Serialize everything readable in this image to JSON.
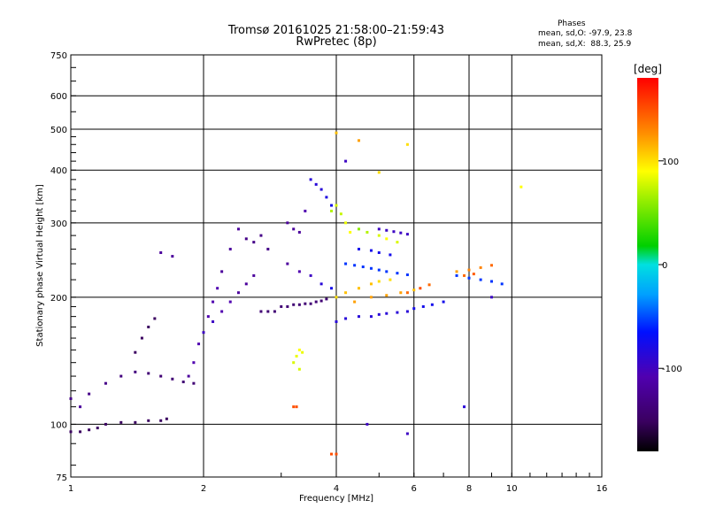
{
  "header": {
    "title_line1": "Tromsø 20161025 21:58:00–21:59:43",
    "title_line2": "RwPretec (8p)"
  },
  "stats": {
    "heading": "Phases",
    "o_mode": "mean, sd,O: -97.9, 23.8",
    "x_mode": "mean, sd,X:  88.3, 25.9"
  },
  "colorbar": {
    "unit_label": "[deg]",
    "range": [
      -180,
      180
    ],
    "ticks": [
      {
        "value": 100,
        "label": "100"
      },
      {
        "value": 0,
        "label": "0"
      },
      {
        "value": -100,
        "label": "-100"
      }
    ]
  },
  "chart_data": {
    "type": "scatter",
    "xlabel": "Frequency [MHz]",
    "ylabel": "Stationary phase Virtual Height [km]",
    "x_scale": "log",
    "y_scale": "log",
    "xlim": [
      1,
      16
    ],
    "ylim": [
      75,
      750
    ],
    "grid": true,
    "x_ticks": [
      1,
      2,
      4,
      6,
      8,
      10,
      16
    ],
    "x_tick_labels": [
      "1",
      "2",
      "4",
      "6",
      "8",
      "10",
      "16"
    ],
    "y_ticks": [
      75,
      100,
      200,
      300,
      400,
      500,
      600,
      750
    ],
    "y_tick_labels": [
      "75",
      "100",
      "200",
      "300",
      "400",
      "500",
      "600",
      "750"
    ],
    "color_encoding": "phase [deg]",
    "series": [
      {
        "mode": "O",
        "points": [
          [
            1.0,
            96,
            -150
          ],
          [
            1.05,
            96,
            -150
          ],
          [
            1.1,
            97,
            -150
          ],
          [
            1.15,
            98,
            -150
          ],
          [
            1.2,
            100,
            -150
          ],
          [
            1.3,
            101,
            -150
          ],
          [
            1.4,
            101,
            -150
          ],
          [
            1.5,
            102,
            -150
          ],
          [
            1.6,
            102,
            -150
          ],
          [
            1.65,
            103,
            -150
          ],
          [
            1.0,
            115,
            -130
          ],
          [
            1.05,
            110,
            -120
          ],
          [
            1.1,
            118,
            -130
          ],
          [
            1.2,
            125,
            -130
          ],
          [
            1.3,
            130,
            -135
          ],
          [
            1.4,
            133,
            -135
          ],
          [
            1.5,
            132,
            -140
          ],
          [
            1.6,
            130,
            -140
          ],
          [
            1.7,
            128,
            -140
          ],
          [
            1.8,
            126,
            -140
          ],
          [
            1.9,
            125,
            -140
          ],
          [
            1.4,
            148,
            -150
          ],
          [
            1.45,
            160,
            -150
          ],
          [
            1.5,
            170,
            -150
          ],
          [
            1.55,
            178,
            -150
          ],
          [
            1.6,
            255,
            -120
          ],
          [
            1.7,
            250,
            -120
          ],
          [
            1.85,
            130,
            -120
          ],
          [
            1.9,
            140,
            -110
          ],
          [
            1.95,
            155,
            -110
          ],
          [
            2.0,
            165,
            -100
          ],
          [
            2.05,
            180,
            -110
          ],
          [
            2.1,
            195,
            -110
          ],
          [
            2.15,
            210,
            -110
          ],
          [
            2.2,
            230,
            -120
          ],
          [
            2.3,
            260,
            -120
          ],
          [
            2.4,
            290,
            -120
          ],
          [
            2.5,
            275,
            -130
          ],
          [
            2.6,
            270,
            -130
          ],
          [
            2.7,
            280,
            -130
          ],
          [
            2.8,
            260,
            -130
          ],
          [
            2.1,
            175,
            -100
          ],
          [
            2.2,
            185,
            -110
          ],
          [
            2.3,
            195,
            -110
          ],
          [
            2.4,
            205,
            -120
          ],
          [
            2.5,
            215,
            -120
          ],
          [
            2.6,
            225,
            -120
          ],
          [
            2.7,
            185,
            -140
          ],
          [
            2.8,
            185,
            -140
          ],
          [
            2.9,
            185,
            -140
          ],
          [
            3.0,
            190,
            -140
          ],
          [
            3.1,
            190,
            -140
          ],
          [
            3.2,
            192,
            -140
          ],
          [
            3.3,
            192,
            -140
          ],
          [
            3.4,
            193,
            -140
          ],
          [
            3.5,
            193,
            -140
          ],
          [
            3.6,
            195,
            -140
          ],
          [
            3.7,
            196,
            -140
          ],
          [
            3.8,
            198,
            -140
          ],
          [
            3.1,
            300,
            -120
          ],
          [
            3.2,
            290,
            -120
          ],
          [
            3.3,
            285,
            -120
          ],
          [
            3.4,
            320,
            -110
          ],
          [
            3.5,
            380,
            -90
          ],
          [
            3.6,
            370,
            -90
          ],
          [
            3.7,
            360,
            -90
          ],
          [
            3.8,
            345,
            -85
          ],
          [
            3.9,
            330,
            -80
          ],
          [
            3.1,
            240,
            -120
          ],
          [
            3.3,
            230,
            -110
          ],
          [
            3.5,
            225,
            -100
          ],
          [
            3.7,
            215,
            -90
          ],
          [
            3.9,
            210,
            -80
          ],
          [
            4.0,
            175,
            -90
          ],
          [
            4.2,
            178,
            -90
          ],
          [
            4.5,
            180,
            -90
          ],
          [
            4.8,
            180,
            -90
          ],
          [
            5.0,
            182,
            -90
          ],
          [
            5.2,
            183,
            -90
          ],
          [
            5.5,
            184,
            -90
          ],
          [
            5.8,
            185,
            -90
          ],
          [
            6.0,
            188,
            -80
          ],
          [
            6.3,
            190,
            -80
          ],
          [
            6.6,
            192,
            -80
          ],
          [
            7.0,
            195,
            -80
          ],
          [
            4.2,
            240,
            -60
          ],
          [
            4.4,
            238,
            -60
          ],
          [
            4.6,
            236,
            -60
          ],
          [
            4.8,
            234,
            -60
          ],
          [
            5.0,
            232,
            -60
          ],
          [
            5.2,
            230,
            -60
          ],
          [
            5.5,
            228,
            -60
          ],
          [
            5.8,
            226,
            -60
          ],
          [
            4.5,
            260,
            -80
          ],
          [
            4.8,
            258,
            -80
          ],
          [
            5.0,
            255,
            -80
          ],
          [
            5.3,
            252,
            -80
          ],
          [
            5.0,
            290,
            -100
          ],
          [
            5.2,
            288,
            -100
          ],
          [
            5.4,
            286,
            -100
          ],
          [
            5.6,
            284,
            -100
          ],
          [
            5.8,
            282,
            -100
          ],
          [
            7.5,
            225,
            -60
          ],
          [
            8.0,
            222,
            -60
          ],
          [
            8.5,
            220,
            -60
          ],
          [
            9.0,
            218,
            -60
          ],
          [
            9.5,
            215,
            -60
          ],
          [
            4.2,
            420,
            -100
          ],
          [
            4.7,
            100,
            -100
          ],
          [
            5.8,
            95,
            -100
          ],
          [
            7.8,
            110,
            -90
          ],
          [
            9.0,
            200,
            -100
          ]
        ]
      },
      {
        "mode": "X",
        "points": [
          [
            3.2,
            140,
            80
          ],
          [
            3.25,
            145,
            85
          ],
          [
            3.3,
            150,
            90
          ],
          [
            3.35,
            148,
            85
          ],
          [
            3.3,
            135,
            80
          ],
          [
            3.2,
            110,
            150
          ],
          [
            3.25,
            110,
            150
          ],
          [
            3.9,
            85,
            150
          ],
          [
            4.0,
            85,
            150
          ],
          [
            3.9,
            320,
            70
          ],
          [
            4.0,
            330,
            80
          ],
          [
            4.1,
            315,
            75
          ],
          [
            4.2,
            300,
            85
          ],
          [
            4.3,
            285,
            90
          ],
          [
            4.5,
            290,
            60
          ],
          [
            4.7,
            285,
            70
          ],
          [
            5.0,
            280,
            80
          ],
          [
            5.2,
            275,
            90
          ],
          [
            5.5,
            270,
            80
          ],
          [
            4.0,
            200,
            100
          ],
          [
            4.2,
            205,
            110
          ],
          [
            4.5,
            210,
            110
          ],
          [
            4.8,
            215,
            110
          ],
          [
            5.0,
            218,
            100
          ],
          [
            5.3,
            220,
            100
          ],
          [
            4.4,
            195,
            120
          ],
          [
            4.8,
            200,
            120
          ],
          [
            5.2,
            202,
            120
          ],
          [
            5.6,
            205,
            120
          ],
          [
            6.0,
            208,
            110
          ],
          [
            7.5,
            230,
            120
          ],
          [
            8.0,
            232,
            130
          ],
          [
            8.5,
            235,
            130
          ],
          [
            9.0,
            238,
            140
          ],
          [
            7.8,
            225,
            140
          ],
          [
            8.2,
            227,
            145
          ],
          [
            5.0,
            395,
            100
          ],
          [
            5.8,
            460,
            100
          ],
          [
            10.5,
            365,
            90
          ],
          [
            4.0,
            490,
            110
          ],
          [
            4.5,
            470,
            120
          ],
          [
            5.8,
            205,
            140
          ],
          [
            6.2,
            210,
            150
          ],
          [
            6.5,
            214,
            140
          ]
        ]
      }
    ]
  }
}
